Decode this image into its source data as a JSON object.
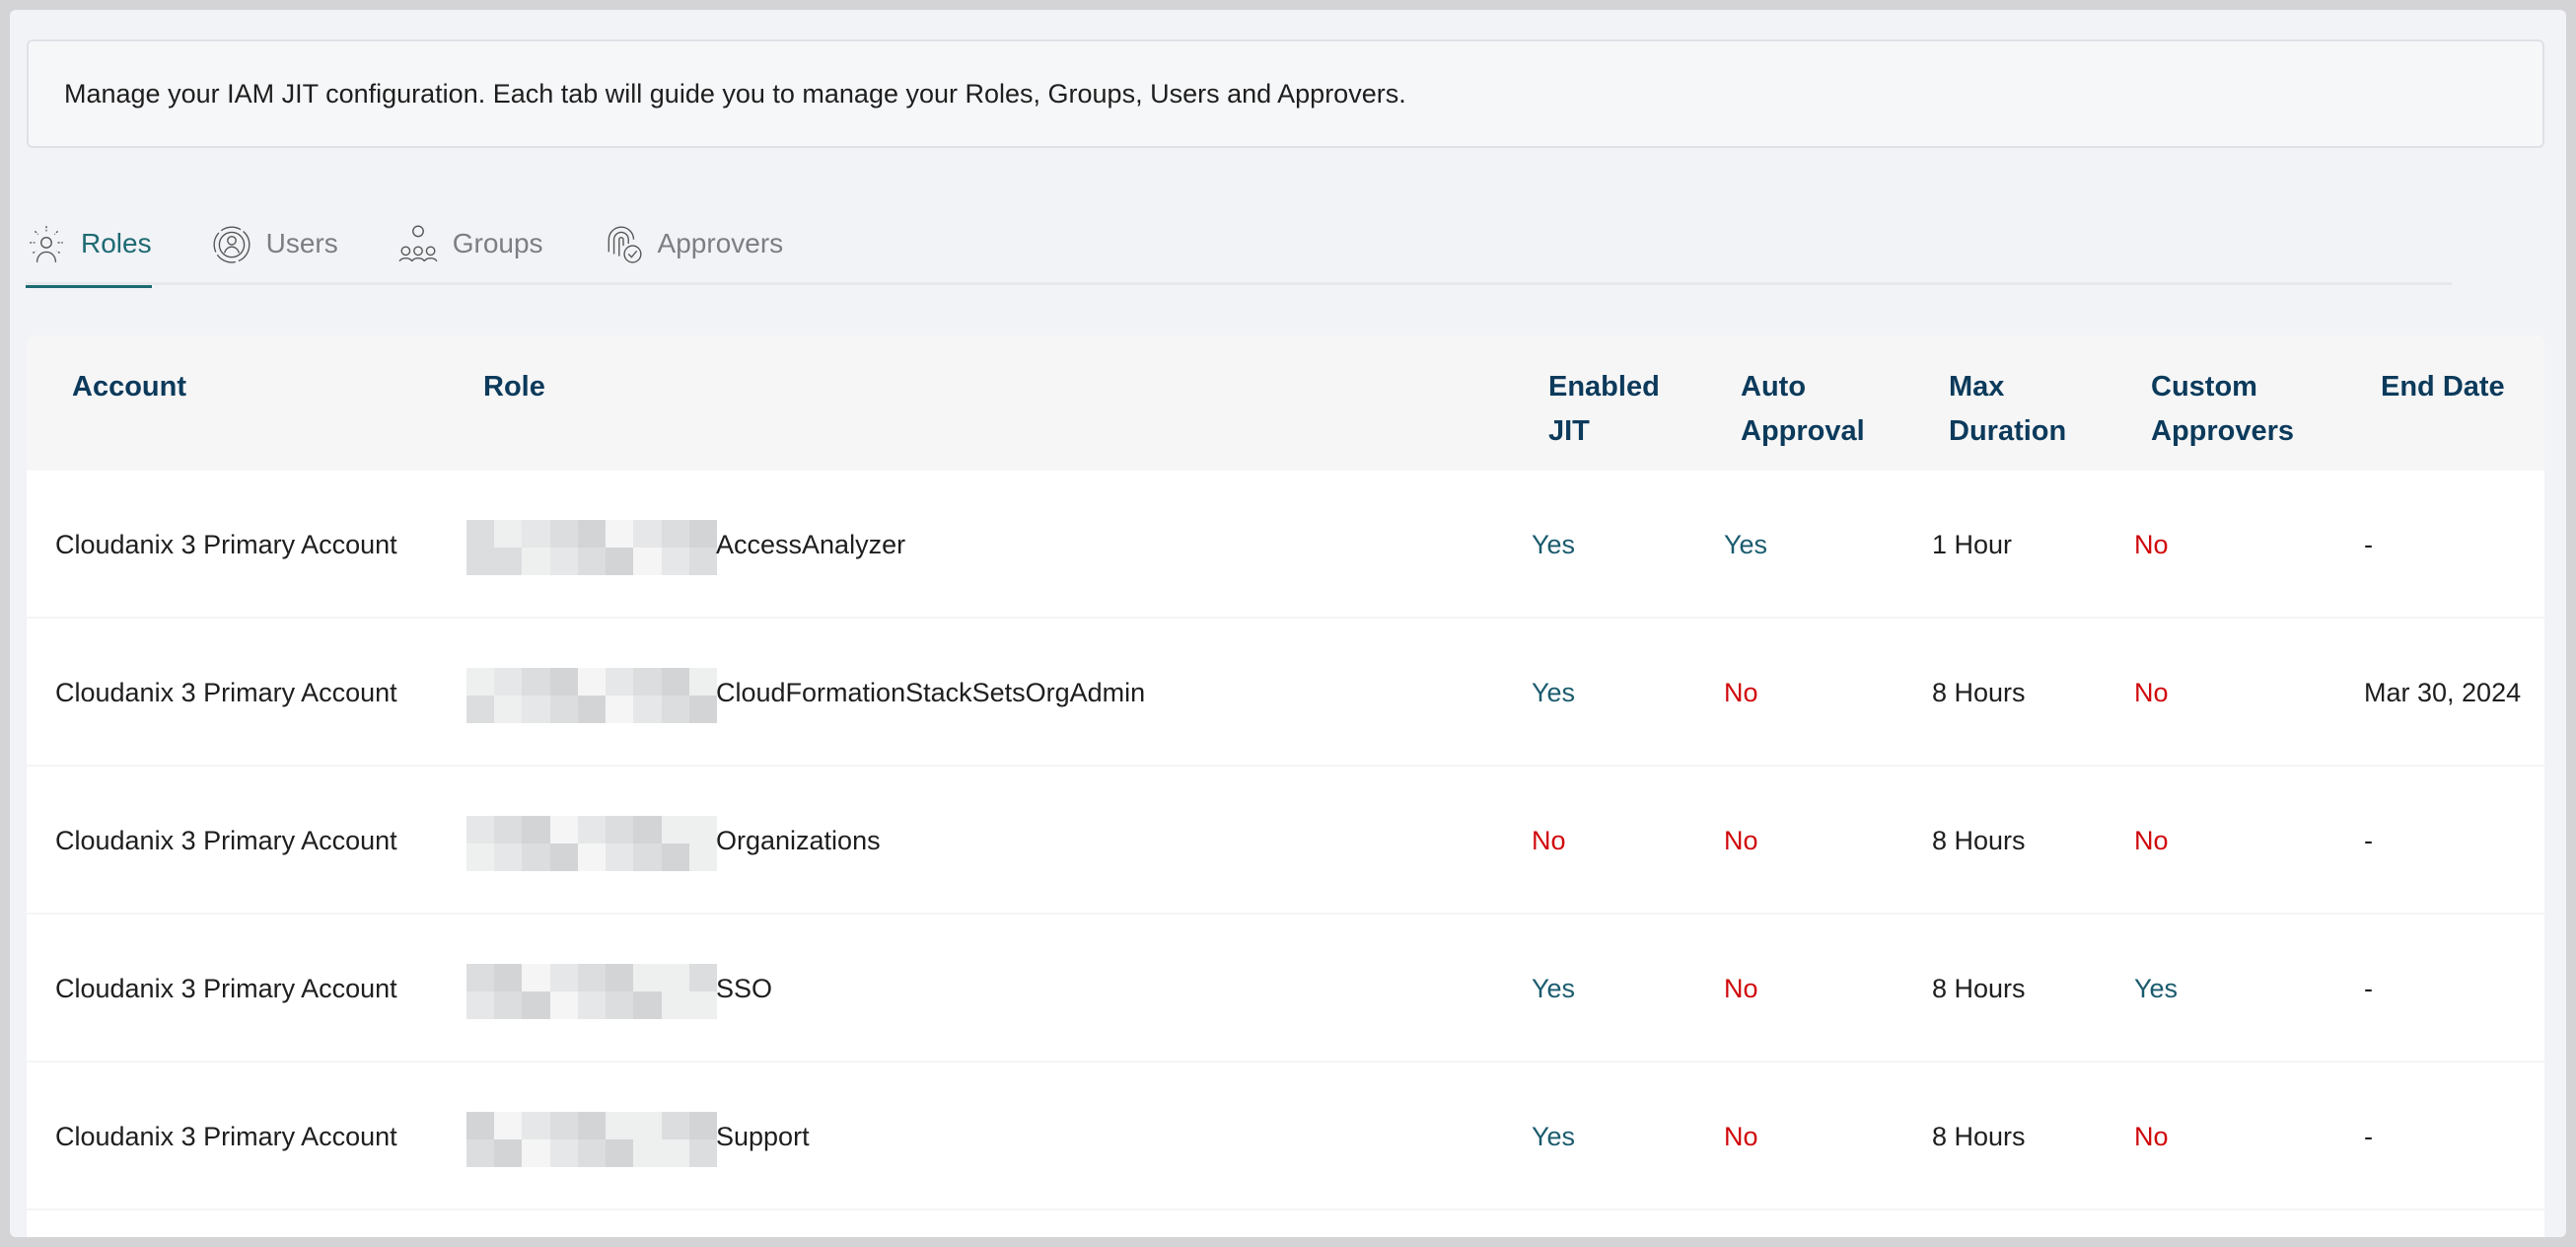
{
  "description": "Manage your IAM JIT configuration. Each tab will guide you to manage your Roles, Groups, Users and Approvers.",
  "tabs": [
    {
      "label": "Roles",
      "icon": "roles-icon",
      "active": true
    },
    {
      "label": "Users",
      "icon": "user-icon",
      "active": false
    },
    {
      "label": "Groups",
      "icon": "groups-icon",
      "active": false
    },
    {
      "label": "Approvers",
      "icon": "fingerprint-check-icon",
      "active": false
    }
  ],
  "colors": {
    "accent": "#1d6a72",
    "header_text": "#0c3a5b",
    "yes": "#1a5b6e",
    "no": "#d0080c"
  },
  "table": {
    "headers": {
      "account": "Account",
      "role": "Role",
      "enabled_jit": [
        "Enabled",
        "JIT"
      ],
      "auto_approval": [
        "Auto",
        "Approval"
      ],
      "max_duration": [
        "Max",
        "Duration"
      ],
      "custom_approvers": [
        "Custom",
        "Approvers"
      ],
      "end_date": "End Date"
    },
    "rows": [
      {
        "account": "Cloudanix 3 Primary Account",
        "role": "AccessAnalyzer",
        "enabled_jit": "Yes",
        "auto_approval": "Yes",
        "max_duration": "1 Hour",
        "custom_approvers": "No",
        "end_date": "-"
      },
      {
        "account": "Cloudanix 3 Primary Account",
        "role": "CloudFormationStackSetsOrgAdmin",
        "enabled_jit": "Yes",
        "auto_approval": "No",
        "max_duration": "8 Hours",
        "custom_approvers": "No",
        "end_date": "Mar 30, 2024"
      },
      {
        "account": "Cloudanix 3 Primary Account",
        "role": "Organizations",
        "enabled_jit": "No",
        "auto_approval": "No",
        "max_duration": "8 Hours",
        "custom_approvers": "No",
        "end_date": "-"
      },
      {
        "account": "Cloudanix 3 Primary Account",
        "role": "SSO",
        "enabled_jit": "Yes",
        "auto_approval": "No",
        "max_duration": "8 Hours",
        "custom_approvers": "Yes",
        "end_date": "-"
      },
      {
        "account": "Cloudanix 3 Primary Account",
        "role": "Support",
        "enabled_jit": "Yes",
        "auto_approval": "No",
        "max_duration": "8 Hours",
        "custom_approvers": "No",
        "end_date": "-"
      }
    ]
  }
}
